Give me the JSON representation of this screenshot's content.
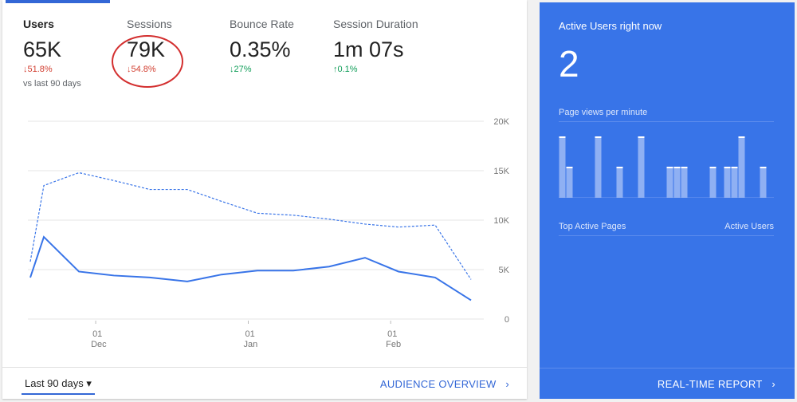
{
  "metrics": [
    {
      "label": "Users",
      "value": "65K",
      "change": "↓51.8%",
      "trend": "down-bad"
    },
    {
      "label": "Sessions",
      "value": "79K",
      "change": "↓54.8%",
      "trend": "down-bad"
    },
    {
      "label": "Bounce Rate",
      "value": "0.35%",
      "change": "↓27%",
      "trend": "down-good"
    },
    {
      "label": "Session Duration",
      "value": "1m 07s",
      "change": "↑0.1%",
      "trend": "up-good"
    }
  ],
  "comparison": "vs last 90 days",
  "chart_data": {
    "type": "line",
    "y_ticks": [
      "20K",
      "15K",
      "10K",
      "5K",
      "0"
    ],
    "ylim": [
      0,
      20000
    ],
    "x_ticks": [
      {
        "day": "01",
        "month": "Dec",
        "index": 2
      },
      {
        "day": "01",
        "month": "Jan",
        "index": 6.5
      },
      {
        "day": "01",
        "month": "Feb",
        "index": 10.7
      }
    ],
    "series": [
      {
        "name": "current",
        "style": "solid",
        "values": [
          4200,
          8300,
          4800,
          4400,
          4200,
          3800,
          4500,
          4900,
          4900,
          5300,
          6200,
          4800,
          4200,
          1900
        ]
      },
      {
        "name": "previous",
        "style": "dashed",
        "values": [
          5800,
          13500,
          14800,
          14000,
          13100,
          13100,
          11900,
          10700,
          10500,
          10100,
          9600,
          9300,
          9500,
          4000
        ]
      }
    ]
  },
  "footer": {
    "range": "Last 90 days",
    "link": "AUDIENCE OVERVIEW"
  },
  "realtime": {
    "title": "Active Users right now",
    "count": "2",
    "pv_label": "Page views per minute",
    "pageviews": [
      2,
      1,
      0,
      0,
      0,
      2,
      0,
      0,
      1,
      0,
      0,
      2,
      0,
      0,
      0,
      1,
      1,
      1,
      0,
      0,
      0,
      1,
      0,
      1,
      1,
      2,
      0,
      0,
      1,
      0
    ],
    "pages_label": "Top Active Pages",
    "users_label": "Active Users",
    "link": "REAL-TIME REPORT"
  },
  "colors": {
    "accent": "#3367d6",
    "panel": "#3874e8"
  }
}
